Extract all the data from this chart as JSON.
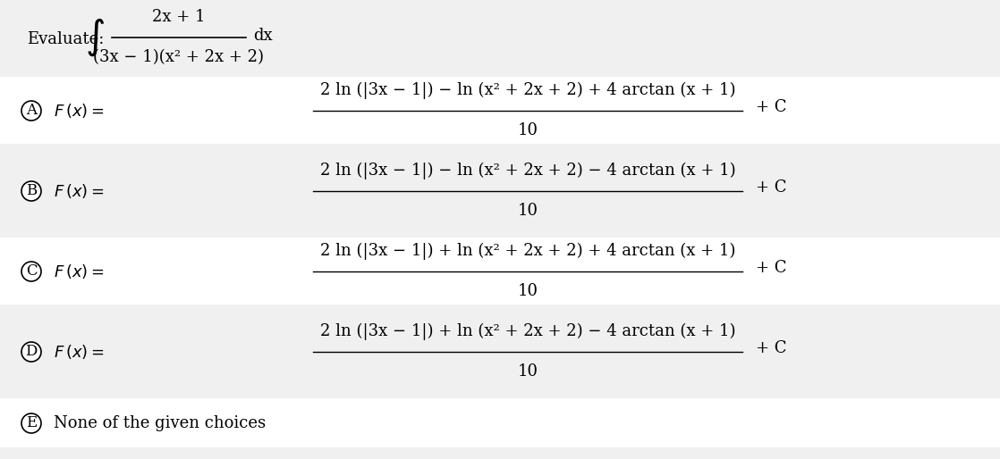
{
  "background_color": "#f0f0f0",
  "white_color": "#ffffff",
  "text_color": "#000000",
  "title_text": "Evaluate:",
  "integral_numerator": "2x + 1",
  "integral_denominator": "(3x − 1)(x² + 2x + 2)",
  "integral_dx": "dx",
  "choices": [
    {
      "label": "A",
      "numerator": "2 ln (|3x − 1|) − ln (x² + 2x + 2) + 4 arctan (x + 1)",
      "denominator": "10",
      "plus_c": "+ C"
    },
    {
      "label": "B",
      "numerator": "2 ln (|3x − 1|) − ln (x² + 2x + 2) − 4 arctan (x + 1)",
      "denominator": "10",
      "plus_c": "+ C"
    },
    {
      "label": "C",
      "numerator": "2 ln (|3x − 1|) + ln (x² + 2x + 2) + 4 arctan (x + 1)",
      "denominator": "10",
      "plus_c": "+ C"
    },
    {
      "label": "D",
      "numerator": "2 ln (|3x − 1|) + ln (x² + 2x + 2) − 4 arctan (x + 1)",
      "denominator": "10",
      "plus_c": "+ C"
    }
  ],
  "last_choice_label": "E",
  "last_choice_text": "None of the given choices",
  "choice_font_size": 13,
  "label_font_size": 12,
  "title_font_size": 13,
  "integral_font_size": 13
}
